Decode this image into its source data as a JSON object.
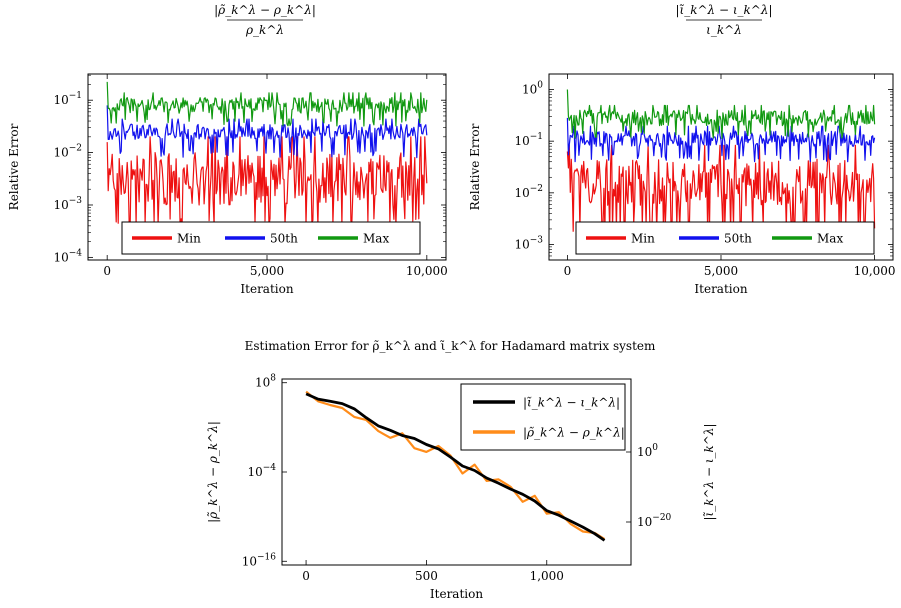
{
  "caption": "Estimation Error for ρ̃_k^λ and ι̃_k^λ for Hadamard matrix system",
  "colors": {
    "min": "#ee1111",
    "p50": "#1111ee",
    "max": "#119911",
    "iota": "#000000",
    "rho": "#ff8c1a"
  },
  "chart_data": [
    {
      "type": "line",
      "title": "|ρ̃_k^λ − ρ_k^λ| / ρ_k^λ",
      "xlabel": "Iteration",
      "ylabel": "Relative Error",
      "xlim": [
        -600,
        10600
      ],
      "ylim_log10": [
        -4.05,
        -0.5
      ],
      "yscale": "log",
      "x_ticks": [
        0,
        5000,
        10000
      ],
      "x_tick_labels": [
        "0",
        "5,000",
        "10,000"
      ],
      "y_ticks_log10": [
        -4,
        -3,
        -2,
        -1
      ],
      "legend": "bottom-center",
      "series": [
        {
          "name": "Min",
          "color_key": "min",
          "log10_center": -2.5,
          "log10_band": 0.5,
          "log10_floor": -3.25,
          "log10_start": -1.8
        },
        {
          "name": "50th",
          "color_key": "p50",
          "log10_center": -1.6,
          "log10_band": 0.15,
          "log10_floor": -1.95,
          "log10_start": -1.1
        },
        {
          "name": "Max",
          "color_key": "max",
          "log10_center": -1.1,
          "log10_band": 0.15,
          "log10_floor": -1.35,
          "log10_start": -0.65
        }
      ],
      "x_start": 0,
      "x_end": 10000
    },
    {
      "type": "line",
      "title": "|ι̃_k^λ − ι_k^λ| / ι_k^λ",
      "xlabel": "Iteration",
      "ylabel": "Relative Error",
      "xlim": [
        -600,
        10600
      ],
      "ylim_log10": [
        -3.3,
        0.3
      ],
      "yscale": "log",
      "x_ticks": [
        0,
        5000,
        10000
      ],
      "x_tick_labels": [
        "0",
        "5,000",
        "10,000"
      ],
      "y_ticks_log10": [
        -3,
        -2,
        -1,
        0
      ],
      "legend": "bottom-center",
      "series": [
        {
          "name": "Min",
          "color_key": "min",
          "log10_center": -1.8,
          "log10_band": 0.45,
          "log10_floor": -2.6,
          "log10_start": -1.2
        },
        {
          "name": "50th",
          "color_key": "p50",
          "log10_center": -0.95,
          "log10_band": 0.15,
          "log10_floor": -1.25,
          "log10_start": -0.55
        },
        {
          "name": "Max",
          "color_key": "max",
          "log10_center": -0.55,
          "log10_band": 0.15,
          "log10_floor": -0.8,
          "log10_start": 0.0
        }
      ],
      "x_start": 0,
      "x_end": 10000
    },
    {
      "type": "line",
      "title": "",
      "xlabel": "Iteration",
      "ylabel_left": "|ρ̃_k^λ − ρ_k^λ|",
      "ylabel_right": "|ι̃_k^λ − ι_k^λ|",
      "xlim": [
        -100,
        1350
      ],
      "yscale": "log",
      "ylim_log10_left": [
        -16.5,
        8.5
      ],
      "x_ticks": [
        0,
        500,
        1000
      ],
      "x_tick_labels": [
        "0",
        "500",
        "1,000"
      ],
      "y_ticks_log10_left": [
        -16,
        -4,
        8
      ],
      "y_ticks_log10_right": [
        0,
        -20
      ],
      "legend": "top-right",
      "series": [
        {
          "name": "|ι̃_k^λ − ι_k^λ|",
          "color_key": "iota",
          "x": [
            0,
            50,
            100,
            150,
            200,
            250,
            300,
            350,
            400,
            450,
            500,
            550,
            600,
            650,
            700,
            750,
            800,
            850,
            900,
            950,
            1000,
            1050,
            1100,
            1150,
            1200,
            1240
          ],
          "log10_y_left": [
            6.5,
            5.8,
            5.5,
            5.2,
            4.5,
            3.3,
            2.2,
            1.6,
            0.9,
            0.5,
            -0.3,
            -0.9,
            -2.0,
            -3.2,
            -3.8,
            -4.8,
            -5.5,
            -6.3,
            -7.0,
            -7.9,
            -9.2,
            -9.8,
            -10.6,
            -11.4,
            -12.3,
            -13.2
          ]
        },
        {
          "name": "|ρ̃_k^λ − ρ_k^λ|",
          "color_key": "rho",
          "x": [
            0,
            50,
            100,
            150,
            200,
            250,
            300,
            350,
            400,
            450,
            500,
            550,
            600,
            650,
            700,
            750,
            800,
            850,
            900,
            950,
            1000,
            1050,
            1100,
            1150,
            1200,
            1240
          ],
          "log10_y_left": [
            6.8,
            5.5,
            5.0,
            4.6,
            3.4,
            3.0,
            1.5,
            0.6,
            1.2,
            -0.8,
            -1.3,
            -0.5,
            -1.8,
            -4.2,
            -3.0,
            -5.2,
            -5.0,
            -6.0,
            -8.0,
            -7.2,
            -9.6,
            -9.4,
            -11.0,
            -12.0,
            -12.2,
            -13.0
          ]
        }
      ]
    }
  ]
}
